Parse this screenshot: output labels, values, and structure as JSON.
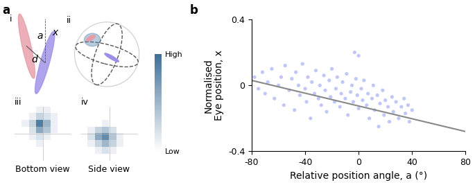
{
  "diagram": {
    "panel_labels": [
      "a",
      "b"
    ],
    "subpanels": [
      "i",
      "ii"
    ],
    "symbols": [
      "d",
      "a",
      "x"
    ]
  },
  "chart_data": [
    {
      "type": "heatmap",
      "label": "iii",
      "xlabel": "Bottom view",
      "tick_labels": false,
      "cells": [
        [
          0,
          0,
          0,
          0.1,
          0.1,
          0,
          0,
          0
        ],
        [
          0,
          0,
          0.1,
          0.3,
          0.2,
          0.1,
          0,
          0
        ],
        [
          0,
          0.1,
          0.3,
          0.9,
          0.5,
          0.1,
          0,
          0
        ],
        [
          0,
          0,
          0.2,
          0.6,
          0.4,
          0.1,
          0,
          0
        ],
        [
          0,
          0,
          0.1,
          0.2,
          0.1,
          0,
          0,
          0
        ],
        [
          0,
          0,
          0,
          0.1,
          0,
          0,
          0,
          0
        ],
        [
          0,
          0,
          0,
          0,
          0,
          0,
          0,
          0
        ],
        [
          0,
          0,
          0,
          0,
          0,
          0,
          0,
          0
        ]
      ],
      "colorbar": {
        "range": [
          0,
          1
        ],
        "ticks": [
          {
            "value": 1,
            "label": "High"
          },
          {
            "value": 0,
            "label": "Low"
          }
        ]
      }
    },
    {
      "type": "heatmap",
      "label": "iv",
      "xlabel": "Side view",
      "tick_labels": false,
      "cells": [
        [
          0,
          0,
          0,
          0,
          0,
          0,
          0,
          0
        ],
        [
          0,
          0,
          0,
          0,
          0,
          0,
          0,
          0
        ],
        [
          0,
          0,
          0,
          0.1,
          0,
          0,
          0,
          0
        ],
        [
          0,
          0.1,
          0.3,
          0.4,
          0.2,
          0,
          0,
          0
        ],
        [
          0,
          0.2,
          0.6,
          0.8,
          0.4,
          0.1,
          0,
          0
        ],
        [
          0,
          0.1,
          0.3,
          0.5,
          0.3,
          0.1,
          0,
          0
        ],
        [
          0,
          0,
          0.1,
          0.2,
          0.1,
          0,
          0,
          0
        ],
        [
          0,
          0,
          0,
          0,
          0,
          0,
          0,
          0
        ]
      ]
    },
    {
      "type": "scatter",
      "xlabel": "Relative position angle, a (°)",
      "ylabel": "Normalised\nEye position, x",
      "color": "#4d5ee6",
      "xlim": [
        -80,
        80
      ],
      "ylim": [
        -0.4,
        0.4
      ],
      "xticks": [
        -80,
        -40,
        0,
        40,
        80
      ],
      "yticks": [
        -0.4,
        0,
        0.4
      ],
      "x": [
        -78,
        -75,
        -72,
        -70,
        -68,
        -65,
        -63,
        -60,
        -58,
        -56,
        -55,
        -52,
        -50,
        -48,
        -47,
        -45,
        -44,
        -42,
        -40,
        -39,
        -38,
        -36,
        -35,
        -33,
        -32,
        -30,
        -29,
        -28,
        -26,
        -25,
        -24,
        -22,
        -21,
        -20,
        -18,
        -17,
        -16,
        -14,
        -13,
        -12,
        -10,
        -9,
        -8,
        -6,
        -5,
        -4,
        -2,
        -1,
        0,
        2,
        3,
        4,
        6,
        7,
        8,
        10,
        11,
        12,
        14,
        15,
        16,
        18,
        19,
        20,
        22,
        23,
        25,
        26,
        28,
        30,
        32,
        34,
        35,
        37,
        38,
        40,
        -3,
        0
      ],
      "values": [
        0.05,
        -0.02,
        0.08,
        -0.05,
        0.02,
        0.1,
        -0.08,
        0.0,
        0.05,
        -0.12,
        0.12,
        -0.03,
        0.04,
        -0.15,
        0.08,
        0.0,
        -0.06,
        0.13,
        -0.02,
        -0.1,
        0.05,
        -0.2,
        0.02,
        -0.05,
        0.09,
        -0.08,
        0.0,
        -0.12,
        0.06,
        -0.03,
        -0.16,
        0.03,
        -0.07,
        0.1,
        -0.1,
        -0.02,
        0.05,
        -0.13,
        -0.05,
        0.02,
        -0.08,
        0.07,
        -0.18,
        -0.04,
        0.0,
        -0.1,
        0.04,
        -0.06,
        -0.14,
        -0.02,
        -0.09,
        0.03,
        -0.12,
        -0.05,
        -0.2,
        -0.08,
        0.0,
        -0.15,
        -0.06,
        -0.25,
        -0.11,
        -0.03,
        -0.18,
        -0.09,
        -0.13,
        -0.22,
        -0.07,
        -0.16,
        -0.1,
        -0.2,
        -0.13,
        -0.08,
        -0.17,
        -0.12,
        -0.22,
        -0.15,
        0.2,
        0.18
      ],
      "trend": {
        "type": "line",
        "x": [
          -80,
          80
        ],
        "values": [
          0.03,
          -0.28
        ],
        "color": "#888888"
      }
    }
  ]
}
